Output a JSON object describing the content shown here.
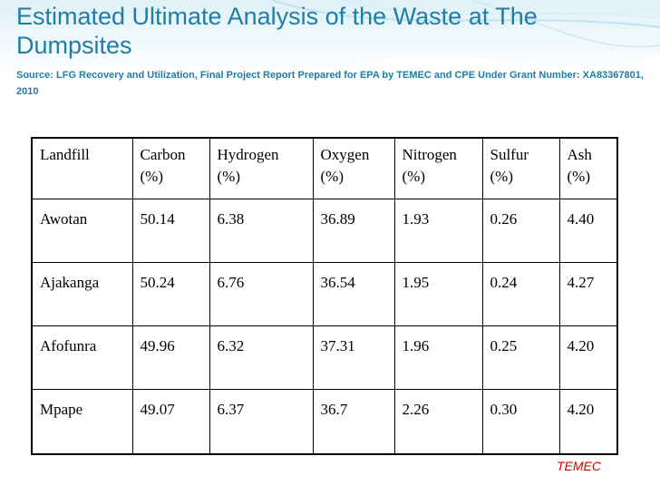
{
  "slide": {
    "title": "Estimated Ultimate Analysis of the Waste at The Dumpsites",
    "source": "Source: LFG Recovery and Utilization, Final Project Report Prepared for EPA by TEMEC and CPE Under Grant Number: XA83367801, 2010",
    "credit": "TEMEC"
  },
  "table": {
    "headers": [
      {
        "line1": "Landfill",
        "line2": ""
      },
      {
        "line1": "Carbon",
        "line2": "(%)"
      },
      {
        "line1": "Hydrogen",
        "line2": "(%)"
      },
      {
        "line1": "Oxygen",
        "line2": "(%)"
      },
      {
        "line1": "Nitrogen",
        "line2": "(%)"
      },
      {
        "line1": "Sulfur",
        "line2": "(%)"
      },
      {
        "line1": "Ash",
        "line2": "(%)"
      }
    ],
    "rows": [
      [
        "Awotan",
        "50.14",
        "6.38",
        "36.89",
        "1.93",
        "0.26",
        "4.40"
      ],
      [
        "Ajakanga",
        "50.24",
        "6.76",
        "36.54",
        "1.95",
        "0.24",
        "4.27"
      ],
      [
        "Afofunra",
        "49.96",
        "6.32",
        "37.31",
        "1.96",
        "0.25",
        "4.20"
      ],
      [
        "Mpape",
        "49.07",
        "6.37",
        "36.7",
        "2.26",
        "0.30",
        "4.20"
      ]
    ]
  },
  "colors": {
    "title": "#1f7ea6",
    "credit": "#e00000",
    "wave": "#7fc4e0"
  }
}
